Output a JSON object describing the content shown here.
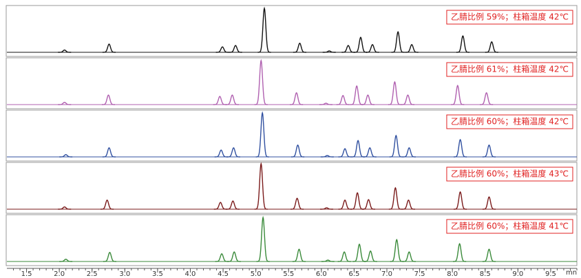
{
  "chart_data": {
    "type": "chromatogram",
    "xlim": [
      1.2,
      9.9
    ],
    "xticks": [
      1.5,
      {
        "value": 2,
        "label": "2.0"
      },
      2.5,
      {
        "value": 3,
        "label": "3.0"
      },
      3.5,
      {
        "value": 4,
        "label": "4.0"
      },
      4.5,
      {
        "value": 5,
        "label": "5.0"
      },
      5.5,
      {
        "value": 6,
        "label": "6.0"
      },
      6.5,
      {
        "value": 7,
        "label": "7.0"
      },
      7.5,
      {
        "value": 8,
        "label": "8.0"
      },
      8.5,
      {
        "value": 9,
        "label": "9.0"
      },
      9.5
    ],
    "xlabel": "mn",
    "ylim": [
      0,
      100
    ],
    "panels": [
      {
        "label": "乙腈比例 59%；柱箱温度 42℃",
        "color": "#111111",
        "x": [
          2.08,
          2.76,
          4.49,
          4.69,
          5.13,
          5.67,
          6.12,
          6.41,
          6.6,
          6.78,
          7.17,
          7.38,
          8.16,
          8.6
        ],
        "values": [
          5,
          18,
          12,
          15,
          97,
          20,
          3,
          15,
          33,
          17,
          45,
          17,
          36,
          23
        ]
      },
      {
        "label": "乙腈比例 61%；柱箱温度 42℃",
        "color": "#b060b0",
        "x": [
          2.08,
          2.75,
          4.45,
          4.64,
          5.08,
          5.62,
          6.07,
          6.33,
          6.54,
          6.71,
          7.12,
          7.32,
          8.08,
          8.52
        ],
        "values": [
          5,
          21,
          18,
          21,
          97,
          26,
          3,
          20,
          41,
          21,
          50,
          21,
          42,
          26
        ]
      },
      {
        "label": "乙腈比例 60%；柱箱温度 42℃",
        "color": "#3050a0",
        "x": [
          2.1,
          2.76,
          4.47,
          4.66,
          5.1,
          5.64,
          6.09,
          6.36,
          6.56,
          6.74,
          7.14,
          7.34,
          8.12,
          8.56
        ],
        "values": [
          5,
          20,
          15,
          20,
          97,
          26,
          3,
          18,
          36,
          20,
          47,
          20,
          38,
          26
        ]
      },
      {
        "label": "乙腈比例 60%；柱箱温度 43℃",
        "color": "#7a1a1a",
        "x": [
          2.08,
          2.73,
          4.46,
          4.65,
          5.08,
          5.63,
          6.08,
          6.36,
          6.55,
          6.72,
          7.13,
          7.33,
          8.12,
          8.56
        ],
        "values": [
          5,
          20,
          15,
          18,
          100,
          24,
          3,
          20,
          36,
          21,
          47,
          20,
          38,
          27
        ]
      },
      {
        "label": "乙腈比例 60%；柱箱温度 41℃",
        "color": "#3a8a3a",
        "x": [
          2.1,
          2.77,
          4.48,
          4.67,
          5.11,
          5.66,
          6.1,
          6.35,
          6.58,
          6.75,
          7.15,
          7.34,
          8.11,
          8.56
        ],
        "values": [
          5,
          20,
          17,
          21,
          97,
          27,
          3,
          21,
          38,
          23,
          48,
          21,
          39,
          27
        ]
      }
    ]
  }
}
